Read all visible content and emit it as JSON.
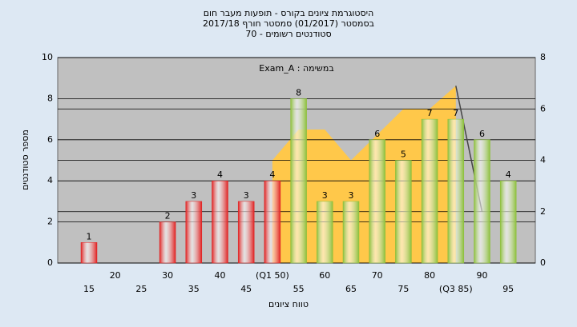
{
  "chart_data": {
    "type": "bar",
    "title": "היסטוגרמת ציונים בקורס - תופעות מעבר חום",
    "subtitle": [
      "בסמסטר  (01/2017)  סמסטר חורף 2017/18",
      "70 - סטודנטים רשומים"
    ],
    "annotation": "Exam_A : במשימה",
    "y_label": "מספר סטודנטים",
    "x_label": "טווח ציונים",
    "categories": [
      "15",
      "20",
      "25",
      "30",
      "35",
      "40",
      "45",
      "(Q1 50)",
      "55",
      "60",
      "65",
      "70",
      "75",
      "80",
      "(Q3 85)",
      "90",
      "95"
    ],
    "values": [
      1,
      0,
      0,
      2,
      3,
      4,
      3,
      4,
      8,
      3,
      3,
      6,
      5,
      7,
      7,
      6,
      4
    ],
    "colors": [
      "#e02020",
      "#e02020",
      "#e02020",
      "#e02020",
      "#e02020",
      "#e02020",
      "#e02020",
      "#e02020",
      "#8cbf3a",
      "#8cbf3a",
      "#8cbf3a",
      "#8cbf3a",
      "#8cbf3a",
      "#8cbf3a",
      "#8cbf3a",
      "#8cbf3a",
      "#8cbf3a"
    ],
    "ylim": [
      0,
      10
    ],
    "yticks": [
      0,
      2,
      4,
      6,
      8,
      10
    ],
    "y2lim": [
      0,
      8
    ],
    "y2ticks": [
      0,
      2,
      4,
      6,
      8
    ],
    "area": {
      "axis": "y2",
      "color": "#ffc84a",
      "values": [
        null,
        null,
        null,
        null,
        null,
        null,
        null,
        4,
        5.2,
        5.2,
        4,
        5,
        6,
        6,
        6.9,
        null,
        null
      ]
    },
    "line": {
      "axis": "y2",
      "color": "#444444",
      "values": [
        null,
        null,
        null,
        null,
        null,
        null,
        null,
        null,
        null,
        null,
        null,
        null,
        null,
        null,
        6.9,
        2,
        null
      ]
    },
    "grid": true
  }
}
